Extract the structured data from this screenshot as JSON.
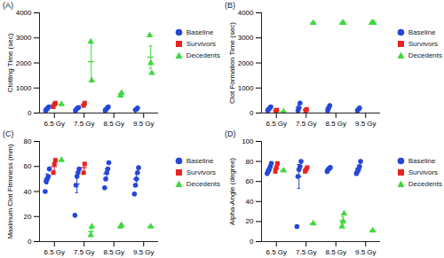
{
  "chart_data": [
    {
      "type": "scatter",
      "title": "(A)",
      "y_label": "Clotting Time (sec)",
      "categories": [
        "6.5 Gy",
        "7.5 Gy",
        "8.5 Gy",
        "9.5 Gy"
      ],
      "ylim": [
        0,
        4000
      ],
      "yticks": [
        0,
        1000,
        2000,
        3000,
        4000
      ],
      "grid": false,
      "legend": "right",
      "series": [
        {
          "name": "Baseline",
          "color": "#2447d8",
          "marker": "circle",
          "values": [
            [
              100,
              150,
              200,
              250
            ],
            [
              100,
              150,
              200,
              220
            ],
            [
              100,
              150,
              200,
              250
            ],
            [
              120,
              150,
              200
            ]
          ],
          "mean": [
            180,
            170,
            180,
            160
          ],
          "error": [
            30,
            30,
            30,
            20
          ]
        },
        {
          "name": "Survivors",
          "color": "#e8231f",
          "marker": "square",
          "values": [
            [
              250,
              350,
              400
            ],
            [
              300,
              400
            ],
            [],
            []
          ],
          "mean": [
            330,
            330,
            null,
            null
          ],
          "error": [
            50,
            60,
            null,
            null
          ]
        },
        {
          "name": "Decedents",
          "color": "#3fd83a",
          "marker": "triangle",
          "values": [
            [
              350
            ],
            [
              2850,
              1300
            ],
            [
              700,
              800
            ],
            [
              3100,
              2000,
              1600
            ]
          ],
          "mean": [
            350,
            2050,
            750,
            2230
          ],
          "error": [
            null,
            800,
            50,
            450
          ]
        }
      ]
    },
    {
      "type": "scatter",
      "title": "(B)",
      "y_label": "Clot Formation Time (sec)",
      "categories": [
        "6.5 Gy",
        "7.5 Gy",
        "8.5 Gy",
        "9.5 Gy"
      ],
      "ylim": [
        0,
        4000
      ],
      "yticks": [
        0,
        1000,
        2000,
        3000,
        4000
      ],
      "grid": false,
      "legend": "right",
      "series": [
        {
          "name": "Baseline",
          "color": "#2447d8",
          "marker": "circle",
          "values": [
            [
              100,
              150,
              200,
              250
            ],
            [
              100,
              200,
              400
            ],
            [
              100,
              200,
              300
            ],
            [
              100,
              150,
              200
            ]
          ],
          "mean": [
            170,
            230,
            200,
            150
          ],
          "error": [
            30,
            90,
            60,
            30
          ]
        },
        {
          "name": "Survivors",
          "color": "#e8231f",
          "marker": "square",
          "values": [
            [
              100,
              120
            ],
            [
              100,
              150
            ],
            [],
            []
          ],
          "mean": [
            110,
            125,
            null,
            null
          ],
          "error": [
            10,
            25,
            null,
            null
          ]
        },
        {
          "name": "Decedents",
          "color": "#3fd83a",
          "marker": "triangle",
          "values": [
            [
              60
            ],
            [
              3600
            ],
            [
              3600,
              3600
            ],
            [
              3600,
              3600,
              3600
            ]
          ],
          "mean": [
            60,
            3600,
            3600,
            3600
          ],
          "error": [
            null,
            null,
            null,
            null
          ]
        }
      ]
    },
    {
      "type": "scatter",
      "title": "(C)",
      "y_label": "Maximum Clot Firmness (mm)",
      "categories": [
        "6.5 Gy",
        "7.5 Gy",
        "8.5 Gy",
        "9.5 Gy"
      ],
      "ylim": [
        0,
        80
      ],
      "yticks": [
        0,
        20,
        40,
        60,
        80
      ],
      "grid": false,
      "legend": "right",
      "series": [
        {
          "name": "Baseline",
          "color": "#2447d8",
          "marker": "circle",
          "values": [
            [
              40,
              48,
              50,
              52,
              58
            ],
            [
              21,
              45,
              52,
              55,
              58
            ],
            [
              43,
              50,
              55,
              58,
              63
            ],
            [
              38,
              45,
              50,
              55,
              59
            ]
          ],
          "mean": [
            50,
            46,
            54,
            50
          ],
          "error": [
            4,
            7,
            4,
            4
          ]
        },
        {
          "name": "Survivors",
          "color": "#e8231f",
          "marker": "square",
          "values": [
            [
              55,
              62,
              65
            ],
            [
              55,
              62
            ],
            [],
            []
          ],
          "mean": [
            60,
            59,
            null,
            null
          ],
          "error": [
            3,
            4,
            null,
            null
          ]
        },
        {
          "name": "Decedents",
          "color": "#3fd83a",
          "marker": "triangle",
          "values": [
            [
              65
            ],
            [
              5,
              12
            ],
            [
              12,
              13
            ],
            [
              12
            ]
          ],
          "mean": [
            65,
            8,
            12,
            12
          ],
          "error": [
            null,
            3,
            null,
            null
          ]
        }
      ]
    },
    {
      "type": "scatter",
      "title": "(D)",
      "y_label": "Alpha-Angle (degree)",
      "categories": [
        "6.5 Gy",
        "7.5 Gy",
        "8.5 Gy",
        "9.5 Gy"
      ],
      "ylim": [
        0,
        100
      ],
      "yticks": [
        0,
        20,
        40,
        60,
        80,
        100
      ],
      "grid": false,
      "legend": "right",
      "series": [
        {
          "name": "Baseline",
          "color": "#2447d8",
          "marker": "circle",
          "values": [
            [
              68,
              70,
              72,
              75,
              78
            ],
            [
              15,
              65,
              72,
              75,
              80
            ],
            [
              70,
              72,
              73,
              74
            ],
            [
              68,
              70,
              72,
              75,
              80
            ]
          ],
          "mean": [
            72,
            65,
            72,
            73
          ],
          "error": [
            2,
            12,
            1,
            3
          ]
        },
        {
          "name": "Survivors",
          "color": "#e8231f",
          "marker": "square",
          "values": [
            [
              70,
              74,
              78
            ],
            [
              70,
              72,
              74
            ],
            [],
            []
          ],
          "mean": [
            73,
            72,
            null,
            null
          ],
          "error": [
            2,
            1,
            null,
            null
          ]
        },
        {
          "name": "Decedents",
          "color": "#3fd83a",
          "marker": "triangle",
          "values": [
            [
              71
            ],
            [
              18
            ],
            [
              15,
              20,
              28
            ],
            [
              11
            ]
          ],
          "mean": [
            71,
            18,
            21,
            11
          ],
          "error": [
            null,
            null,
            4,
            null
          ]
        }
      ]
    }
  ]
}
